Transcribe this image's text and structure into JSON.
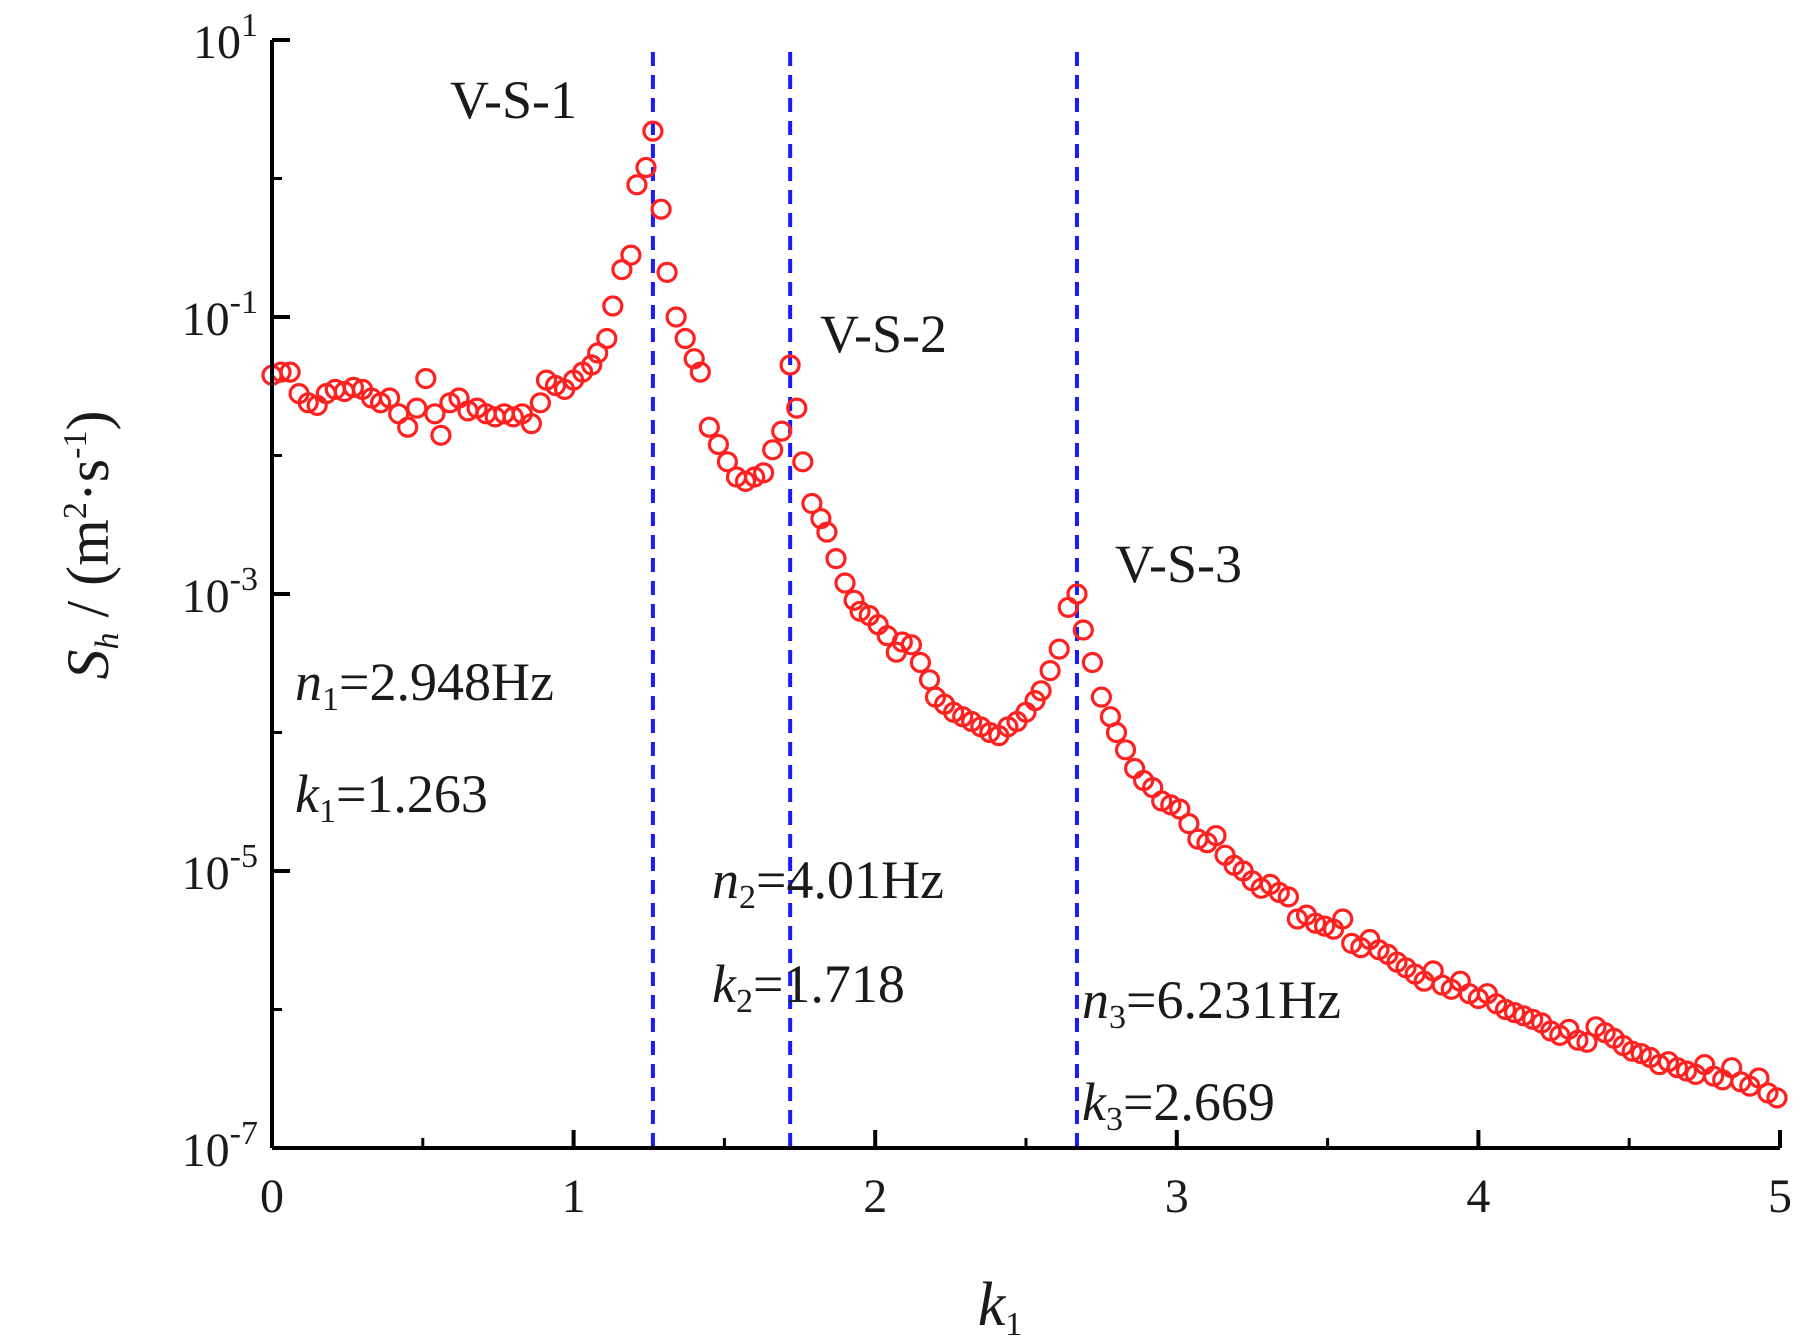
{
  "chart_data": {
    "type": "scatter",
    "title": "",
    "xlabel": {
      "main": "k",
      "sub": "1"
    },
    "ylabel": {
      "main": "S",
      "sub": "h",
      "unit_open": " / (m",
      "unit_sup1": "2",
      "unit_mid": "·s",
      "unit_sup2": "-1",
      "unit_close": ")"
    },
    "xlim": [
      0,
      5
    ],
    "ylim_log10": [
      -7,
      1
    ],
    "x_ticks": [
      {
        "value": 0,
        "label": "0"
      },
      {
        "value": 1,
        "label": "1"
      },
      {
        "value": 2,
        "label": "2"
      },
      {
        "value": 3,
        "label": "3"
      },
      {
        "value": 4,
        "label": "4"
      },
      {
        "value": 5,
        "label": "5"
      }
    ],
    "y_ticks": [
      {
        "exp": 1,
        "base": "10",
        "sup": "1"
      },
      {
        "exp": -1,
        "base": "10",
        "sup": "-1"
      },
      {
        "exp": -3,
        "base": "10",
        "sup": "-3"
      },
      {
        "exp": -5,
        "base": "10",
        "sup": "-5"
      },
      {
        "exp": -7,
        "base": "10",
        "sup": "-7"
      }
    ],
    "marker": {
      "shape": "open-circle",
      "color": "#ff2020"
    },
    "vlines": [
      {
        "x": 1.263,
        "color": "#1a1aff",
        "style": "dashed"
      },
      {
        "x": 1.718,
        "color": "#1a1aff",
        "style": "dashed"
      },
      {
        "x": 2.669,
        "color": "#1a1aff",
        "style": "dashed"
      }
    ],
    "peak_labels": [
      {
        "text": "V-S-1",
        "x": 1.263
      },
      {
        "text": "V-S-2",
        "x": 1.718
      },
      {
        "text": "V-S-3",
        "x": 2.669
      }
    ],
    "annotations": [
      {
        "n_sym": "n",
        "n_sub": "1",
        "n_val": "=2.948Hz",
        "k_sym": "k",
        "k_sub": "1",
        "k_val": "=1.263"
      },
      {
        "n_sym": "n",
        "n_sub": "2",
        "n_val": "=4.01Hz",
        "k_sym": "k",
        "k_sub": "2",
        "k_val": "=1.718"
      },
      {
        "n_sym": "n",
        "n_sub": "3",
        "n_val": "=6.231Hz",
        "k_sym": "k",
        "k_sub": "3",
        "k_val": "=2.669"
      }
    ],
    "series": [
      {
        "name": "S_h",
        "points": [
          [
            0.0,
            0.038
          ],
          [
            0.03,
            0.04
          ],
          [
            0.06,
            0.04
          ],
          [
            0.09,
            0.028
          ],
          [
            0.12,
            0.024
          ],
          [
            0.15,
            0.023
          ],
          [
            0.18,
            0.028
          ],
          [
            0.21,
            0.03
          ],
          [
            0.24,
            0.029
          ],
          [
            0.27,
            0.031
          ],
          [
            0.3,
            0.03
          ],
          [
            0.33,
            0.026
          ],
          [
            0.36,
            0.024
          ],
          [
            0.39,
            0.026
          ],
          [
            0.42,
            0.02
          ],
          [
            0.45,
            0.016
          ],
          [
            0.48,
            0.022
          ],
          [
            0.51,
            0.036
          ],
          [
            0.54,
            0.02
          ],
          [
            0.56,
            0.014
          ],
          [
            0.59,
            0.024
          ],
          [
            0.62,
            0.026
          ],
          [
            0.65,
            0.021
          ],
          [
            0.68,
            0.022
          ],
          [
            0.71,
            0.02
          ],
          [
            0.74,
            0.019
          ],
          [
            0.77,
            0.02
          ],
          [
            0.8,
            0.019
          ],
          [
            0.83,
            0.02
          ],
          [
            0.86,
            0.017
          ],
          [
            0.89,
            0.024
          ],
          [
            0.91,
            0.035
          ],
          [
            0.94,
            0.032
          ],
          [
            0.97,
            0.03
          ],
          [
            1.0,
            0.035
          ],
          [
            1.03,
            0.04
          ],
          [
            1.06,
            0.045
          ],
          [
            1.08,
            0.055
          ],
          [
            1.11,
            0.07
          ],
          [
            1.13,
            0.12
          ],
          [
            1.16,
            0.22
          ],
          [
            1.19,
            0.28
          ],
          [
            1.21,
            0.9
          ],
          [
            1.24,
            1.2
          ],
          [
            1.263,
            2.2
          ],
          [
            1.29,
            0.6
          ],
          [
            1.31,
            0.21
          ],
          [
            1.34,
            0.1
          ],
          [
            1.37,
            0.07
          ],
          [
            1.4,
            0.05
          ],
          [
            1.42,
            0.04
          ],
          [
            1.45,
            0.016
          ],
          [
            1.48,
            0.012
          ],
          [
            1.51,
            0.009
          ],
          [
            1.54,
            0.007
          ],
          [
            1.57,
            0.0065
          ],
          [
            1.6,
            0.007
          ],
          [
            1.63,
            0.0075
          ],
          [
            1.66,
            0.011
          ],
          [
            1.69,
            0.015
          ],
          [
            1.718,
            0.045
          ],
          [
            1.74,
            0.022
          ],
          [
            1.76,
            0.009
          ],
          [
            1.79,
            0.0045
          ],
          [
            1.82,
            0.0035
          ],
          [
            1.84,
            0.0028
          ],
          [
            1.87,
            0.0018
          ],
          [
            1.9,
            0.0012
          ],
          [
            1.93,
            0.0009
          ],
          [
            1.95,
            0.00075
          ],
          [
            1.98,
            0.0007
          ],
          [
            2.01,
            0.0006
          ],
          [
            2.04,
            0.0005
          ],
          [
            2.07,
            0.00038
          ],
          [
            2.09,
            0.00045
          ],
          [
            2.12,
            0.00043
          ],
          [
            2.15,
            0.00032
          ],
          [
            2.18,
            0.00024
          ],
          [
            2.2,
            0.00018
          ],
          [
            2.23,
            0.00016
          ],
          [
            2.26,
            0.00014
          ],
          [
            2.29,
            0.00013
          ],
          [
            2.32,
            0.00012
          ],
          [
            2.35,
            0.00011
          ],
          [
            2.38,
            0.0001
          ],
          [
            2.41,
            9.5e-05
          ],
          [
            2.44,
            0.00011
          ],
          [
            2.47,
            0.00012
          ],
          [
            2.5,
            0.00014
          ],
          [
            2.53,
            0.00017
          ],
          [
            2.55,
            0.0002
          ],
          [
            2.58,
            0.00028
          ],
          [
            2.61,
            0.0004
          ],
          [
            2.64,
            0.0008
          ],
          [
            2.669,
            0.001
          ],
          [
            2.69,
            0.00055
          ],
          [
            2.72,
            0.00032
          ],
          [
            2.75,
            0.00018
          ],
          [
            2.78,
            0.00013
          ],
          [
            2.8,
            0.0001
          ],
          [
            2.83,
            7.5e-05
          ],
          [
            2.86,
            5.5e-05
          ],
          [
            2.89,
            4.5e-05
          ],
          [
            2.92,
            4e-05
          ],
          [
            2.95,
            3.2e-05
          ],
          [
            2.98,
            3e-05
          ],
          [
            3.01,
            2.8e-05
          ],
          [
            3.04,
            2.2e-05
          ],
          [
            3.07,
            1.7e-05
          ],
          [
            3.1,
            1.6e-05
          ],
          [
            3.13,
            1.8e-05
          ],
          [
            3.16,
            1.3e-05
          ],
          [
            3.19,
            1.1e-05
          ],
          [
            3.22,
            1e-05
          ],
          [
            3.25,
            8.5e-06
          ],
          [
            3.28,
            7.5e-06
          ],
          [
            3.31,
            8e-06
          ],
          [
            3.34,
            7e-06
          ],
          [
            3.37,
            6.5e-06
          ],
          [
            3.4,
            4.5e-06
          ],
          [
            3.43,
            4.8e-06
          ],
          [
            3.46,
            4.2e-06
          ],
          [
            3.49,
            4e-06
          ],
          [
            3.52,
            3.8e-06
          ],
          [
            3.55,
            4.5e-06
          ],
          [
            3.58,
            3e-06
          ],
          [
            3.61,
            2.8e-06
          ],
          [
            3.64,
            3.2e-06
          ],
          [
            3.67,
            2.7e-06
          ],
          [
            3.7,
            2.5e-06
          ],
          [
            3.73,
            2.2e-06
          ],
          [
            3.76,
            2e-06
          ],
          [
            3.79,
            1.8e-06
          ],
          [
            3.82,
            1.6e-06
          ],
          [
            3.85,
            1.9e-06
          ],
          [
            3.88,
            1.5e-06
          ],
          [
            3.91,
            1.4e-06
          ],
          [
            3.94,
            1.6e-06
          ],
          [
            3.97,
            1.3e-06
          ],
          [
            4.0,
            1.2e-06
          ],
          [
            4.03,
            1.3e-06
          ],
          [
            4.06,
            1.1e-06
          ],
          [
            4.09,
            1e-06
          ],
          [
            4.12,
            9.5e-07
          ],
          [
            4.15,
            9e-07
          ],
          [
            4.18,
            8.5e-07
          ],
          [
            4.21,
            8e-07
          ],
          [
            4.24,
            7e-07
          ],
          [
            4.27,
            6.5e-07
          ],
          [
            4.3,
            7.2e-07
          ],
          [
            4.33,
            6e-07
          ],
          [
            4.36,
            5.8e-07
          ],
          [
            4.39,
            7.5e-07
          ],
          [
            4.42,
            6.8e-07
          ],
          [
            4.45,
            6.2e-07
          ],
          [
            4.48,
            5.5e-07
          ],
          [
            4.51,
            5e-07
          ],
          [
            4.54,
            4.8e-07
          ],
          [
            4.57,
            4.5e-07
          ],
          [
            4.6,
            4e-07
          ],
          [
            4.63,
            4.2e-07
          ],
          [
            4.66,
            3.8e-07
          ],
          [
            4.69,
            3.6e-07
          ],
          [
            4.72,
            3.4e-07
          ],
          [
            4.75,
            4e-07
          ],
          [
            4.78,
            3.3e-07
          ],
          [
            4.81,
            3.1e-07
          ],
          [
            4.84,
            3.8e-07
          ],
          [
            4.87,
            3e-07
          ],
          [
            4.9,
            2.8e-07
          ],
          [
            4.93,
            3.2e-07
          ],
          [
            4.96,
            2.5e-07
          ],
          [
            4.99,
            2.3e-07
          ]
        ]
      }
    ]
  }
}
